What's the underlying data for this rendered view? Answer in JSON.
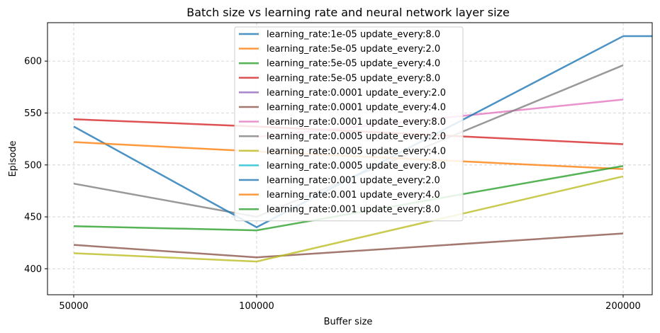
{
  "chart_data": {
    "type": "line",
    "title": "Batch size vs learning rate and neural network layer size",
    "xlabel": "Buffer size",
    "ylabel": "Episode",
    "x": [
      "50000",
      "100000",
      "200000"
    ],
    "xlim": [
      50000,
      200000
    ],
    "ylim": [
      375,
      637
    ],
    "yticks": [
      400,
      450,
      500,
      550,
      600
    ],
    "grid": true,
    "legend_position": "top-center",
    "series": [
      {
        "name": "learning_rate:1e-05 update_every:8.0",
        "color": "#1f77b4",
        "values": [
          null,
          null,
          624
        ]
      },
      {
        "name": "learning_rate:5e-05 update_every:2.0",
        "color": "#ff7f0e",
        "values": [
          null,
          null,
          null
        ]
      },
      {
        "name": "learning_rate:5e-05 update_every:4.0",
        "color": "#2ca02c",
        "values": [
          null,
          null,
          null
        ]
      },
      {
        "name": "learning_rate:5e-05 update_every:8.0",
        "color": "#d62728",
        "values": [
          544,
          537,
          520
        ]
      },
      {
        "name": "learning_rate:0.0001 update_every:2.0",
        "color": "#9467bd",
        "values": [
          null,
          null,
          null
        ]
      },
      {
        "name": "learning_rate:0.0001 update_every:4.0",
        "color": "#8c564b",
        "values": [
          423,
          411,
          434
        ]
      },
      {
        "name": "learning_rate:0.0001 update_every:8.0",
        "color": "#e377c2",
        "values": [
          null,
          527,
          563
        ]
      },
      {
        "name": "learning_rate:0.0005 update_every:2.0",
        "color": "#7f7f7f",
        "values": [
          482,
          450,
          596
        ]
      },
      {
        "name": "learning_rate:0.0005 update_every:4.0",
        "color": "#bcbd22",
        "values": [
          415,
          407,
          489
        ]
      },
      {
        "name": "learning_rate:0.0005 update_every:8.0",
        "color": "#17becf",
        "values": [
          null,
          null,
          null
        ]
      },
      {
        "name": "learning_rate:0.001 update_every:2.0",
        "color": "#1f77b4",
        "values": [
          537,
          440,
          624
        ]
      },
      {
        "name": "learning_rate:0.001 update_every:4.0",
        "color": "#ff7f0e",
        "values": [
          522,
          513,
          496
        ]
      },
      {
        "name": "learning_rate:0.001 update_every:8.0",
        "color": "#2ca02c",
        "values": [
          441,
          437,
          499
        ]
      }
    ]
  }
}
